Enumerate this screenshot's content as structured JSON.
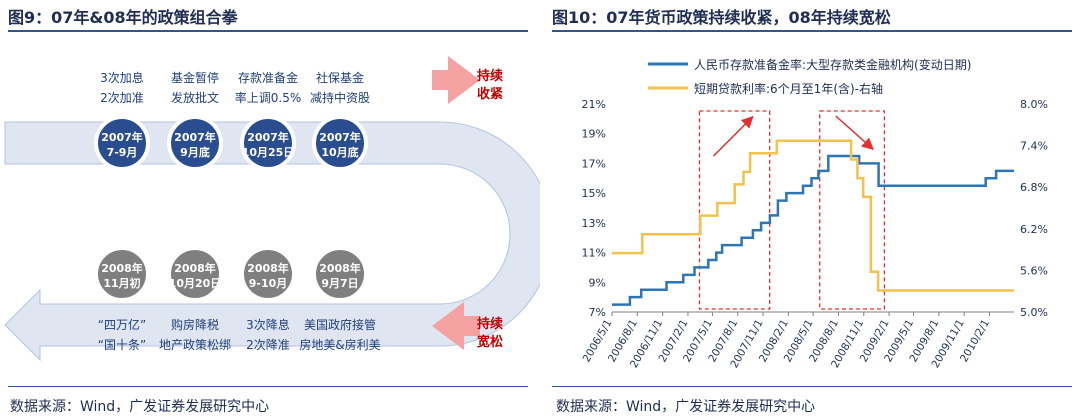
{
  "left_panel": {
    "title": "图9：07年&08年的政策组合拳",
    "source": "数据来源：Wind，广发证券发展研究中心",
    "side_label_top": [
      "持续",
      "收紧"
    ],
    "side_label_bottom": [
      "持续",
      "宽松"
    ],
    "top_events": [
      {
        "circle": [
          "2007年",
          "7-9月"
        ],
        "caption": [
          "3次加息",
          "2次加准"
        ]
      },
      {
        "circle": [
          "2007年",
          "9月底"
        ],
        "caption": [
          "基金暂停",
          "发放批文"
        ]
      },
      {
        "circle": [
          "2007年",
          "10月25日"
        ],
        "caption": [
          "存款准备金",
          "率上调0.5%"
        ]
      },
      {
        "circle": [
          "2007年",
          "10月底"
        ],
        "caption": [
          "社保基金",
          "减持中资股"
        ]
      }
    ],
    "bottom_events": [
      {
        "circle": [
          "2008年",
          "11月初"
        ],
        "caption": [
          "“四万亿”",
          "“国十条”"
        ]
      },
      {
        "circle": [
          "2008年",
          "10月20日"
        ],
        "caption": [
          "购房降税",
          "地产政策松绑"
        ]
      },
      {
        "circle": [
          "2008年",
          "9-10月"
        ],
        "caption": [
          "3次降息",
          "2次降准"
        ]
      },
      {
        "circle": [
          "2008年",
          "9月7日"
        ],
        "caption": [
          "美国政府接管",
          "房地美&房利美"
        ]
      }
    ],
    "colors": {
      "top_circle": "#2a4d8f",
      "bottom_circle": "#7f7f7f",
      "band": "#dfe6f2",
      "accent_arrow": "#e06666",
      "accent_text": "#c00000"
    }
  },
  "right_panel": {
    "title": "图10：07年货币政策持续收紧，08年持续宽松",
    "source": "数据来源：Wind，广发证券发展研究中心"
  },
  "chart_data": {
    "type": "line",
    "x_tick_labels": [
      "2006/5/1",
      "2006/8/1",
      "2006/11/1",
      "2007/2/1",
      "2007/5/1",
      "2007/8/1",
      "2007/11/1",
      "2008/2/1",
      "2008/5/1",
      "2008/8/1",
      "2008/11/1",
      "2009/2/1",
      "2009/5/1",
      "2009/8/1",
      "2009/11/1",
      "2010/2/1"
    ],
    "xlim": [
      "2006/5/1",
      "2010/5/1"
    ],
    "y_left": {
      "ticks": [
        "7%",
        "9%",
        "11%",
        "13%",
        "15%",
        "17%",
        "19%",
        "21%"
      ],
      "lim": [
        7,
        21
      ]
    },
    "y_right": {
      "ticks": [
        "5.0%",
        "5.6%",
        "6.2%",
        "6.8%",
        "7.4%",
        "8.0%"
      ],
      "lim": [
        5.0,
        8.0
      ]
    },
    "series": [
      {
        "name": "人民币存款准备金率:大型存款类金融机构(变动日期)",
        "axis": "left",
        "color": "#2e75b6",
        "points": [
          [
            "2006/5/1",
            7.5
          ],
          [
            "2006/7/5",
            8.0
          ],
          [
            "2006/8/15",
            8.5
          ],
          [
            "2006/11/15",
            9.0
          ],
          [
            "2007/1/15",
            9.5
          ],
          [
            "2007/2/25",
            10.0
          ],
          [
            "2007/4/16",
            10.5
          ],
          [
            "2007/5/15",
            11.0
          ],
          [
            "2007/6/5",
            11.5
          ],
          [
            "2007/8/15",
            12.0
          ],
          [
            "2007/9/25",
            12.5
          ],
          [
            "2007/10/25",
            13.0
          ],
          [
            "2007/11/26",
            13.5
          ],
          [
            "2007/12/25",
            14.5
          ],
          [
            "2008/1/25",
            15.0
          ],
          [
            "2008/3/25",
            15.5
          ],
          [
            "2008/4/25",
            16.0
          ],
          [
            "2008/5/20",
            16.5
          ],
          [
            "2008/6/25",
            17.5
          ],
          [
            "2008/10/15",
            17.0
          ],
          [
            "2008/12/25",
            15.5
          ],
          [
            "2009/12/31",
            15.5
          ],
          [
            "2010/1/18",
            16.0
          ],
          [
            "2010/2/25",
            16.5
          ],
          [
            "2010/5/1",
            16.5
          ]
        ]
      },
      {
        "name": "短期贷款利率:6个月至1年(含)-右轴",
        "axis": "right",
        "color": "#f2c14e",
        "points": [
          [
            "2006/5/1",
            5.85
          ],
          [
            "2006/8/19",
            6.12
          ],
          [
            "2007/3/18",
            6.39
          ],
          [
            "2007/5/19",
            6.57
          ],
          [
            "2007/7/21",
            6.84
          ],
          [
            "2007/8/22",
            7.02
          ],
          [
            "2007/9/15",
            7.29
          ],
          [
            "2007/12/21",
            7.47
          ],
          [
            "2008/9/16",
            7.2
          ],
          [
            "2008/10/9",
            6.93
          ],
          [
            "2008/10/30",
            6.66
          ],
          [
            "2008/11/27",
            5.58
          ],
          [
            "2008/12/23",
            5.31
          ],
          [
            "2010/5/1",
            5.31
          ]
        ]
      }
    ],
    "highlight_boxes": [
      [
        "2007/3/15",
        "2007/11/25"
      ],
      [
        "2008/5/25",
        "2009/1/15"
      ]
    ]
  }
}
